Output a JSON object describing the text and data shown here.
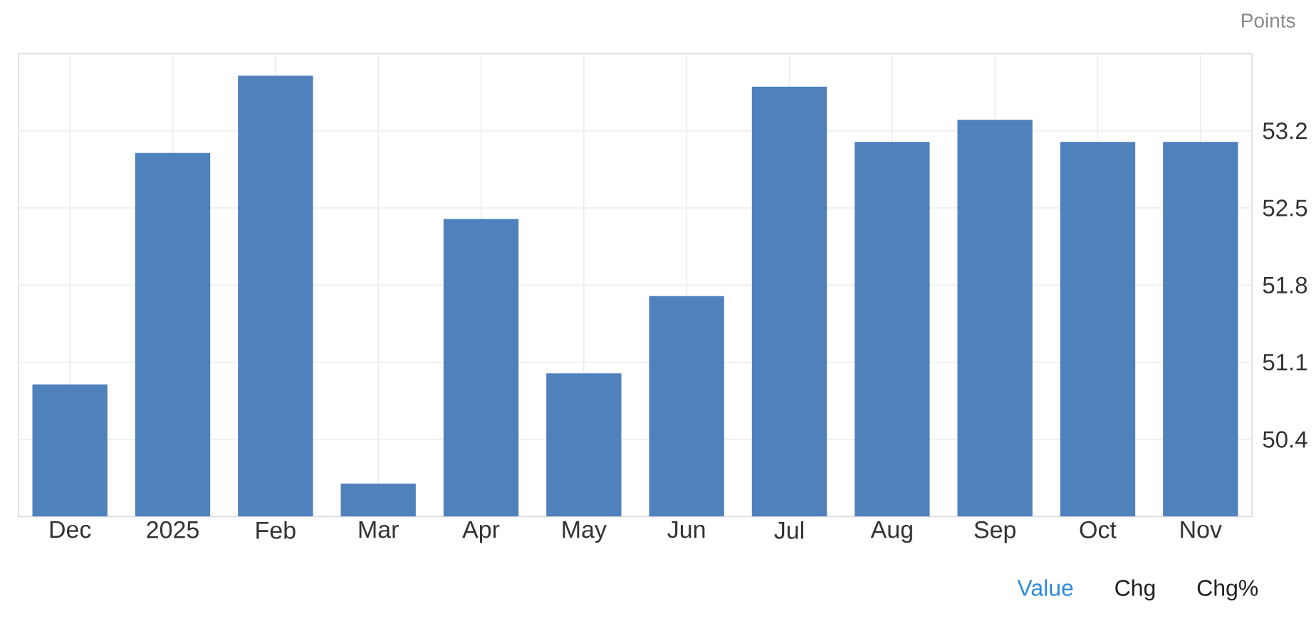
{
  "chart_data": {
    "type": "bar",
    "ylabel": "Points",
    "categories": [
      "Dec",
      "2025",
      "Feb",
      "Mar",
      "Apr",
      "May",
      "Jun",
      "Jul",
      "Aug",
      "Sep",
      "Oct",
      "Nov"
    ],
    "values": [
      50.9,
      53.0,
      53.7,
      50.0,
      52.4,
      51.0,
      51.7,
      53.6,
      53.1,
      53.3,
      53.1,
      53.1
    ],
    "color": "#4f81bd",
    "ylim": [
      49.7,
      53.9
    ],
    "yticks": [
      50.4,
      51.1,
      51.8,
      52.5,
      53.2
    ],
    "grid": true,
    "annotations": [
      "Value",
      "Chg",
      "Chg%"
    ]
  }
}
